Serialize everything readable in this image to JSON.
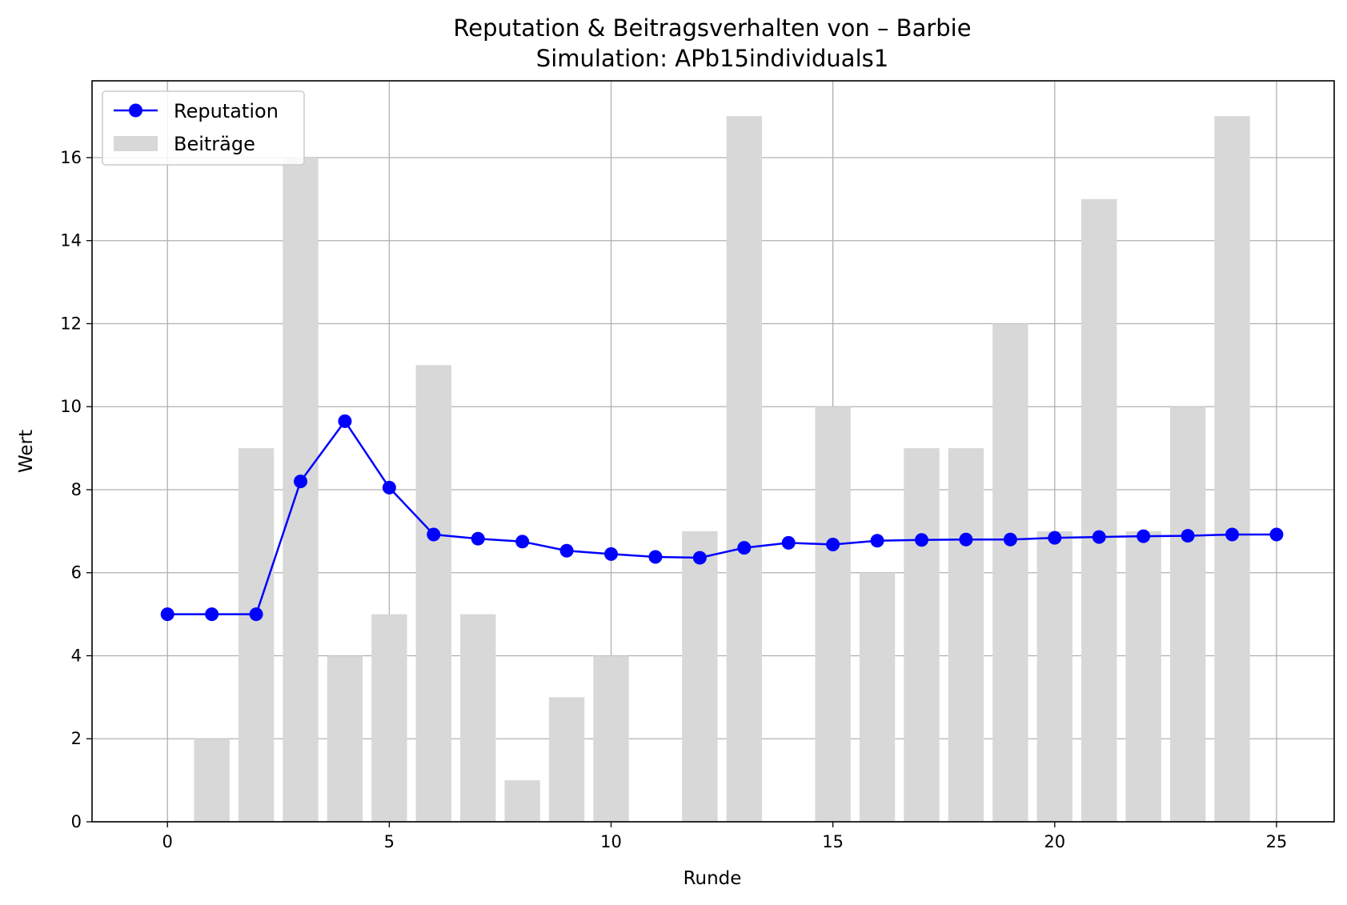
{
  "chart_data": {
    "type": "bar+line",
    "title": "Reputation & Beitragsverhalten von – Barbie",
    "subtitle": "Simulation: APb15individuals1",
    "xlabel": "Runde",
    "ylabel": "Wert",
    "xlim": [
      -1.7,
      26.3
    ],
    "ylim": [
      0,
      17.85
    ],
    "xticks": [
      0,
      5,
      10,
      15,
      20,
      25
    ],
    "yticks": [
      0,
      2,
      4,
      6,
      8,
      10,
      12,
      14,
      16
    ],
    "grid": true,
    "legend_position": "top-left",
    "x": [
      0,
      1,
      2,
      3,
      4,
      5,
      6,
      7,
      8,
      9,
      10,
      11,
      12,
      13,
      14,
      15,
      16,
      17,
      18,
      19,
      20,
      21,
      22,
      23,
      24,
      25
    ],
    "series": [
      {
        "name": "Reputation",
        "kind": "line",
        "marker": "circle",
        "color": "#0000ff",
        "values": [
          5.0,
          5.0,
          5.0,
          8.2,
          9.65,
          8.05,
          6.92,
          6.82,
          6.75,
          6.53,
          6.45,
          6.38,
          6.36,
          6.6,
          6.72,
          6.68,
          6.77,
          6.79,
          6.8,
          6.8,
          6.84,
          6.86,
          6.88,
          6.89,
          6.92,
          6.92
        ]
      },
      {
        "name": "Beiträge",
        "kind": "bar",
        "color": "#d8d8d8",
        "values": [
          0,
          2,
          9,
          16,
          4,
          5,
          11,
          5,
          1,
          3,
          4,
          0,
          7,
          17,
          0,
          10,
          6,
          9,
          9,
          12,
          7,
          15,
          7,
          10,
          17,
          0
        ]
      }
    ]
  }
}
